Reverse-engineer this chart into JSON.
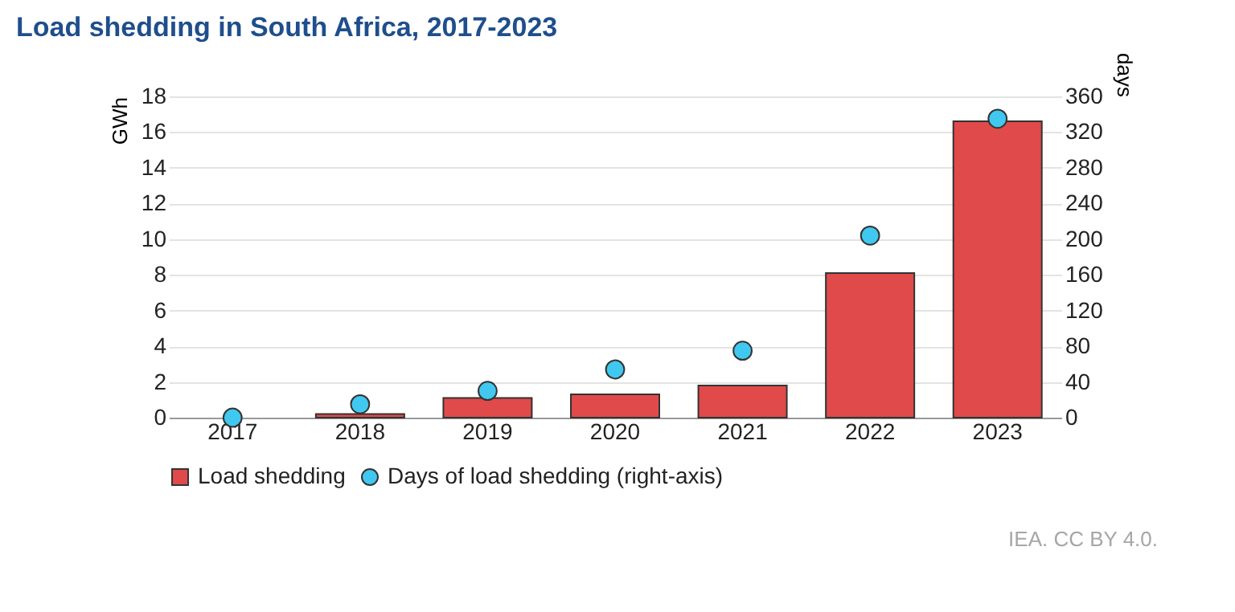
{
  "chart_data": {
    "type": "bar",
    "title": "Load shedding in South Africa, 2017-2023",
    "categories": [
      "2017",
      "2018",
      "2019",
      "2020",
      "2021",
      "2022",
      "2023"
    ],
    "ylabel": "GWh",
    "y2label": "days",
    "ylim": [
      0,
      18
    ],
    "yticks": [
      0,
      2,
      4,
      6,
      8,
      10,
      12,
      14,
      16,
      18
    ],
    "y2lim": [
      0,
      360
    ],
    "y2ticks": [
      0,
      40,
      80,
      120,
      160,
      200,
      240,
      280,
      320,
      360
    ],
    "grid": "y",
    "legend": "bottom",
    "marker": "circle",
    "annotations": [
      "IEA. CC BY 4.0."
    ],
    "series": [
      {
        "name": "Load shedding",
        "color": "#e04a4a",
        "values": [
          null,
          0.2,
          1.1,
          1.3,
          1.8,
          8.1,
          16.6
        ]
      },
      {
        "name": "Days of load shedding (right-axis)",
        "type": "scatter",
        "axis": "y2",
        "color": "#41c8f0",
        "values": [
          0,
          15,
          30,
          54,
          75,
          204,
          335
        ]
      }
    ]
  }
}
